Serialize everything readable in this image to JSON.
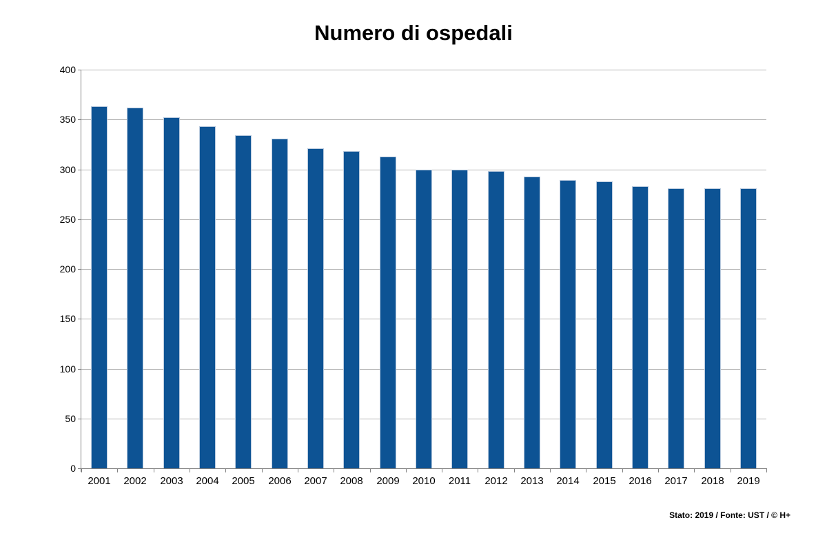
{
  "page": {
    "background": "#ffffff"
  },
  "chart_data": {
    "type": "bar",
    "title": "Numero di ospedali",
    "footer": "Stato: 2019 / Fonte: UST / © H+",
    "categories": [
      "2001",
      "2002",
      "2003",
      "2004",
      "2005",
      "2006",
      "2007",
      "2008",
      "2009",
      "2010",
      "2011",
      "2012",
      "2013",
      "2014",
      "2015",
      "2016",
      "2017",
      "2018",
      "2019"
    ],
    "values": [
      363,
      362,
      352,
      343,
      334,
      331,
      321,
      318,
      313,
      300,
      300,
      298,
      293,
      289,
      288,
      283,
      281,
      281,
      281
    ],
    "xlabel": "",
    "ylabel": "",
    "ylim": [
      0,
      400
    ],
    "ytick_step": 50,
    "yticks": [
      0,
      50,
      100,
      150,
      200,
      250,
      300,
      350,
      400
    ],
    "grid": true,
    "legend": null,
    "colors": {
      "bar_fill": "#0d5394",
      "bar_border": "#b9cade",
      "gridline": "#b3b3b3",
      "axis": "#808080",
      "text": "#000000"
    }
  }
}
